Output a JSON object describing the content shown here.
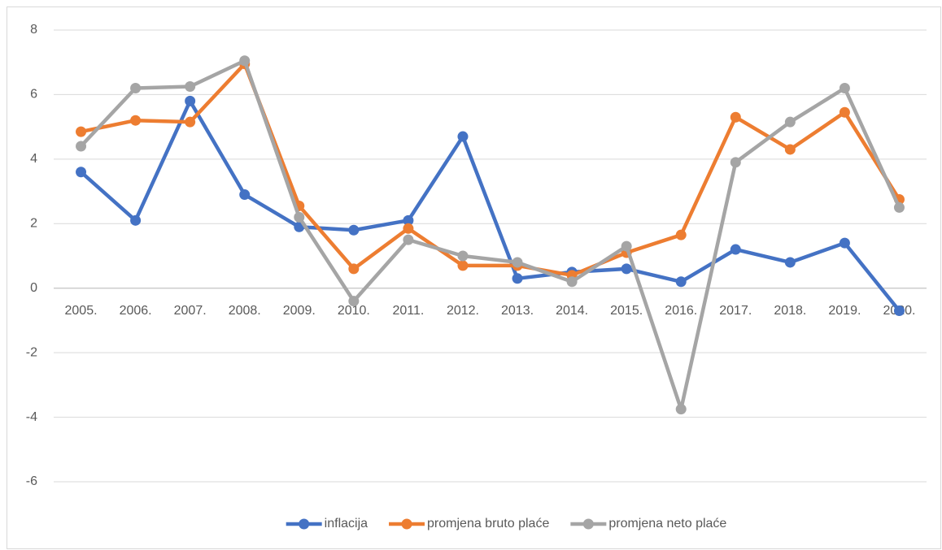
{
  "chart_data": {
    "type": "line",
    "categories": [
      "2005.",
      "2006.",
      "2007.",
      "2008.",
      "2009.",
      "2010.",
      "2011.",
      "2012.",
      "2013.",
      "2014.",
      "2015.",
      "2016.",
      "2017.",
      "2018.",
      "2019.",
      "2020."
    ],
    "series": [
      {
        "name": "inflacija",
        "color": "#4472c4",
        "values": [
          3.6,
          2.1,
          5.8,
          2.9,
          1.9,
          1.8,
          2.1,
          4.7,
          0.3,
          0.5,
          0.6,
          0.2,
          1.2,
          0.8,
          1.4,
          -0.7
        ]
      },
      {
        "name": "promjena bruto plaće",
        "color": "#ed7d31",
        "values": [
          4.85,
          5.2,
          5.15,
          6.95,
          2.55,
          0.6,
          1.85,
          0.7,
          0.7,
          0.4,
          1.1,
          1.65,
          5.3,
          4.3,
          5.45,
          2.75
        ]
      },
      {
        "name": "promjena neto plaće",
        "color": "#a5a5a5",
        "values": [
          4.4,
          6.2,
          6.25,
          7.05,
          2.2,
          -0.4,
          1.5,
          1.0,
          0.8,
          0.2,
          1.3,
          -3.75,
          3.9,
          5.15,
          6.2,
          2.5
        ]
      }
    ],
    "ylim": [
      -6,
      8
    ],
    "yticks": [
      -6,
      -4,
      -2,
      0,
      2,
      4,
      6,
      8
    ],
    "grid": true,
    "legend": "bottom"
  }
}
